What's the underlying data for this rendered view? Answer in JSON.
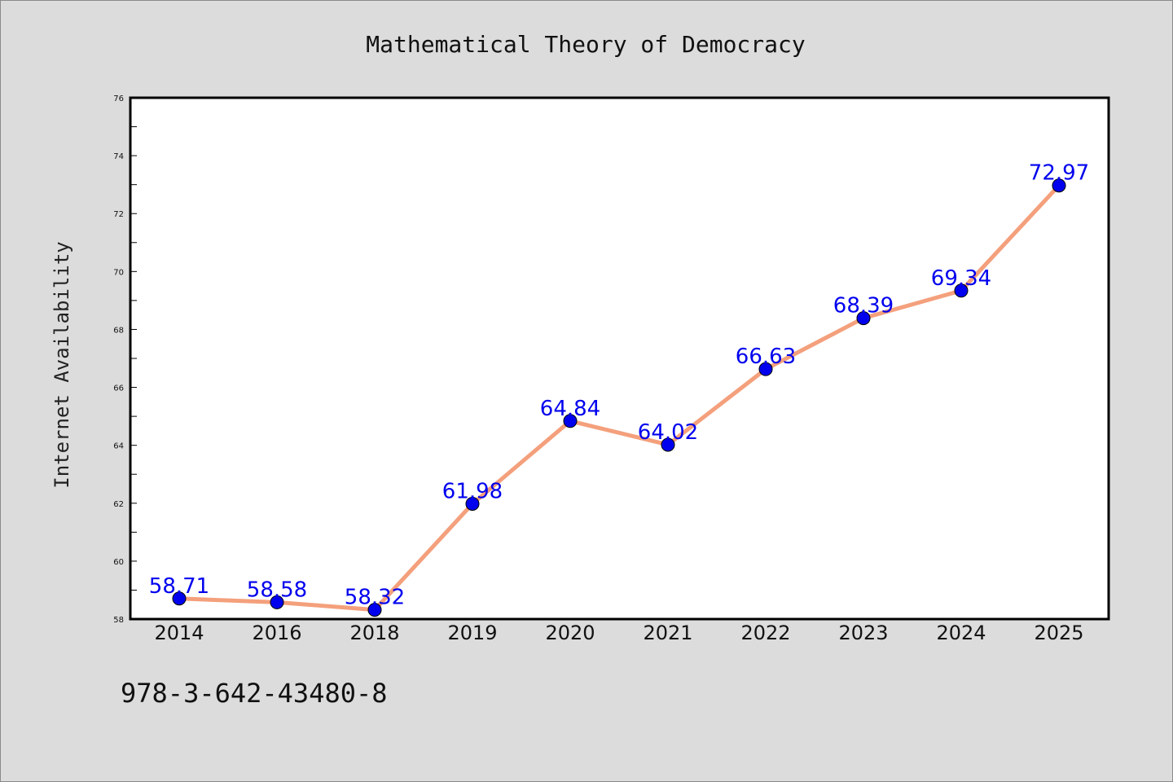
{
  "chart_data": {
    "type": "line",
    "title": "Mathematical Theory of Democracy",
    "xlabel": "",
    "ylabel": "Internet Availability",
    "categories": [
      "2014",
      "2016",
      "2018",
      "2019",
      "2020",
      "2021",
      "2022",
      "2023",
      "2024",
      "2025"
    ],
    "series": [
      {
        "values": [
          58.71,
          58.58,
          58.32,
          61.98,
          64.84,
          64.02,
          66.63,
          68.39,
          69.34,
          72.97
        ]
      }
    ],
    "data_labels": [
      "58.71",
      "58.58",
      "58.32",
      "61.98",
      "64.84",
      "64.02",
      "66.63",
      "68.39",
      "69.34",
      "72.97"
    ],
    "ylim": [
      58,
      76
    ],
    "yticks": [
      "58",
      "60",
      "62",
      "64",
      "66",
      "68",
      "70",
      "72",
      "74",
      "76"
    ],
    "grid": false,
    "legend": "none",
    "colors": {
      "line": "#f4a07c",
      "marker": "#0000ee",
      "data_label": "#0000ee",
      "background": "#dcdcdc",
      "plot_background": "#ffffff"
    }
  },
  "footer": {
    "code": "978-3-642-43480-8"
  }
}
